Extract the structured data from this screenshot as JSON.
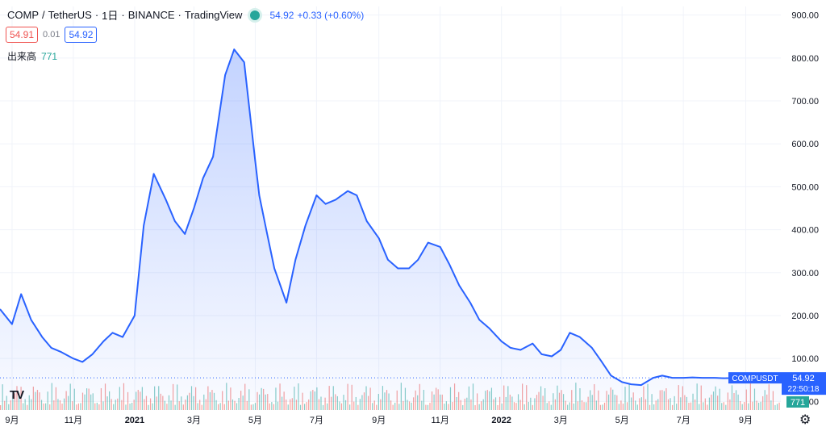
{
  "header": {
    "symbol": "COMP",
    "separator": "/",
    "quote": "TetherUS",
    "interval": "1日",
    "exchange": "BINANCE",
    "provider": "TradingView",
    "last_price": "54.92",
    "change": "+0.33 (+0.60%)"
  },
  "trade": {
    "sell_price": "54.91",
    "spread": "0.01",
    "buy_price": "54.92"
  },
  "volume": {
    "label": "出来高",
    "value": "771"
  },
  "colors": {
    "line": "#2962ff",
    "up": "#26a69a",
    "down": "#ef5350",
    "grid": "#f0f3fa"
  },
  "price_scale": {
    "badge_label": "COMPUSDT",
    "badge_price": "54.92",
    "countdown": "22:50:18",
    "volume_badge": "771"
  },
  "chart_data": {
    "type": "area",
    "title": "",
    "xlabel": "",
    "ylabel": "",
    "ylim": [
      -20,
      920
    ],
    "y_ticks": [
      "900.00",
      "800.00",
      "700.00",
      "600.00",
      "500.00",
      "400.00",
      "300.00",
      "200.00",
      "100.00",
      "0.00"
    ],
    "x_ticks": [
      "9月",
      "11月",
      "2021",
      "3月",
      "5月",
      "7月",
      "9月",
      "11月",
      "2022",
      "3月",
      "5月",
      "7月",
      "9月"
    ],
    "grid": true,
    "series": [
      {
        "x": [
          "2020-08-20",
          "2020-09-01",
          "2020-09-10",
          "2020-09-20",
          "2020-10-01",
          "2020-10-10",
          "2020-10-20",
          "2020-11-01",
          "2020-11-10",
          "2020-11-20",
          "2020-12-01",
          "2020-12-10",
          "2020-12-20",
          "2021-01-01",
          "2021-01-10",
          "2021-01-20",
          "2021-02-01",
          "2021-02-10",
          "2021-02-20",
          "2021-03-01",
          "2021-03-10",
          "2021-03-20",
          "2021-04-01",
          "2021-04-10",
          "2021-04-20",
          "2021-05-01",
          "2021-05-05",
          "2021-05-12",
          "2021-05-20",
          "2021-06-01",
          "2021-06-10",
          "2021-06-20",
          "2021-07-01",
          "2021-07-10",
          "2021-07-20",
          "2021-08-01",
          "2021-08-10",
          "2021-08-20",
          "2021-09-01",
          "2021-09-10",
          "2021-09-20",
          "2021-10-01",
          "2021-10-10",
          "2021-10-20",
          "2021-11-01",
          "2021-11-10",
          "2021-11-20",
          "2021-12-01",
          "2021-12-10",
          "2021-12-20",
          "2022-01-01",
          "2022-01-10",
          "2022-01-20",
          "2022-02-01",
          "2022-02-10",
          "2022-02-20",
          "2022-03-01",
          "2022-03-10",
          "2022-03-20",
          "2022-04-01",
          "2022-04-10",
          "2022-04-20",
          "2022-05-01",
          "2022-05-10",
          "2022-05-20",
          "2022-06-01",
          "2022-06-10",
          "2022-06-20",
          "2022-07-01",
          "2022-07-10",
          "2022-07-20",
          "2022-08-01",
          "2022-08-10",
          "2022-08-20",
          "2022-09-01",
          "2022-09-10",
          "2022-09-20",
          "2022-10-01",
          "2022-10-06"
        ],
        "y": [
          215,
          180,
          250,
          190,
          150,
          125,
          115,
          100,
          92,
          110,
          140,
          160,
          150,
          200,
          410,
          530,
          470,
          420,
          390,
          450,
          520,
          570,
          760,
          820,
          790,
          560,
          480,
          400,
          310,
          230,
          330,
          410,
          480,
          460,
          470,
          490,
          480,
          420,
          380,
          330,
          310,
          310,
          330,
          370,
          360,
          320,
          270,
          230,
          190,
          170,
          140,
          125,
          120,
          135,
          110,
          105,
          120,
          160,
          150,
          125,
          95,
          60,
          45,
          40,
          38,
          55,
          60,
          55,
          55,
          56,
          55,
          55,
          54,
          54.5,
          54.9,
          54.92,
          54.92,
          54.92,
          54.92
        ]
      }
    ],
    "volume_series": {
      "x": [
        "2020-08-20",
        "2020-10-01",
        "2020-11-20",
        "2021-01-10",
        "2021-03-01",
        "2021-04-20",
        "2021-06-10",
        "2021-07-20",
        "2021-09-01",
        "2021-10-20",
        "2021-12-01",
        "2022-01-20",
        "2022-03-10",
        "2022-04-20",
        "2022-06-10",
        "2022-07-20",
        "2022-09-01",
        "2022-10-06"
      ],
      "values": [
        10,
        12,
        8,
        14,
        16,
        10,
        18,
        12,
        10,
        8,
        9,
        7,
        10,
        14,
        20,
        18,
        16,
        771
      ]
    }
  }
}
